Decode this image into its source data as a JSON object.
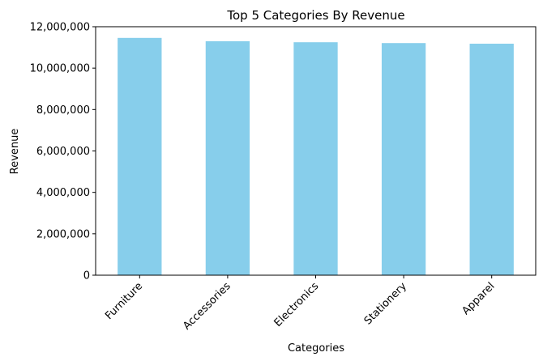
{
  "chart_data": {
    "type": "bar",
    "title": "Top 5 Categories By Revenue",
    "xlabel": "Categories",
    "ylabel": "Revenue",
    "categories": [
      "Furniture",
      "Accessories",
      "Electronics",
      "Stationery",
      "Apparel"
    ],
    "values": [
      11460000,
      11300000,
      11250000,
      11210000,
      11180000
    ],
    "ylim": [
      0,
      12000000
    ],
    "yticks": [
      0,
      2000000,
      4000000,
      6000000,
      8000000,
      10000000,
      12000000
    ],
    "ytick_labels": [
      "0",
      "2,000,000",
      "4,000,000",
      "6,000,000",
      "8,000,000",
      "10,000,000",
      "12,000,000"
    ],
    "bar_color": "#87CEEB",
    "grid": false,
    "legend": "none"
  }
}
